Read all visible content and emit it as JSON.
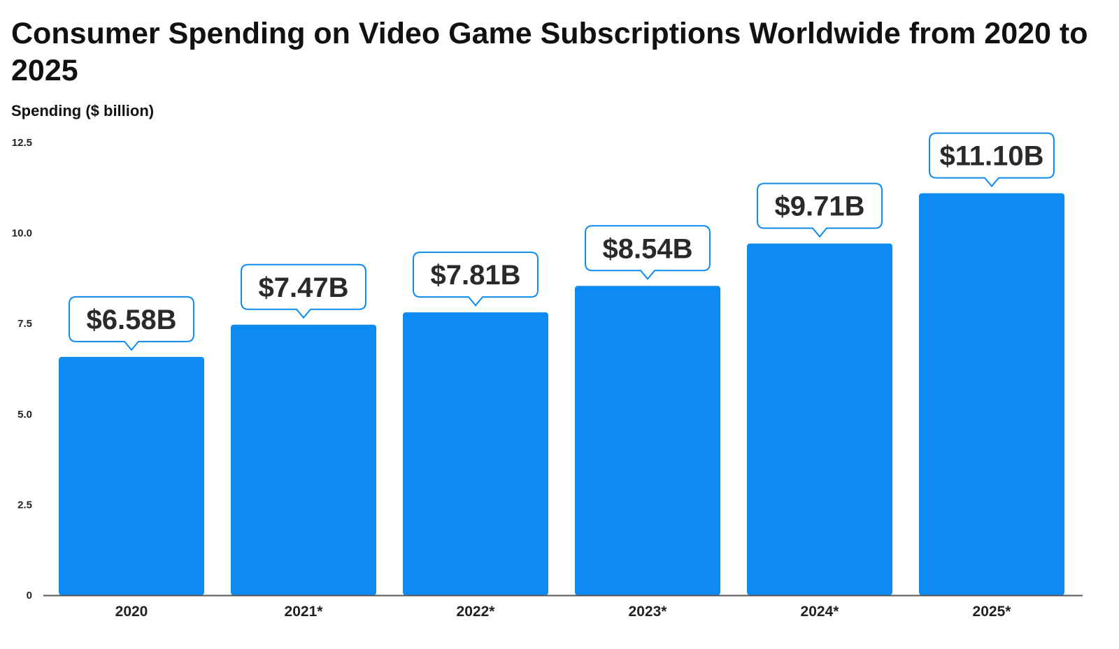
{
  "header": {
    "title": "Consumer Spending on Video Game Subscriptions Worldwide from 2020 to 2025",
    "ylabel": "Spending ($ billion)"
  },
  "colors": {
    "bar": "#0d8bf2",
    "label_border": "#0d8bf2",
    "axis": "#555555"
  },
  "chart_data": {
    "type": "bar",
    "title": "Consumer Spending on Video Game Subscriptions Worldwide from 2020 to 2025",
    "xlabel": "",
    "ylabel": "Spending ($ billion)",
    "ylim": [
      0,
      12.5
    ],
    "yticks": [
      0,
      2.5,
      5.0,
      7.5,
      10.0,
      12.5
    ],
    "ytick_labels": [
      "0",
      "2.5",
      "5.0",
      "7.5",
      "10.0",
      "12.5"
    ],
    "grid": false,
    "categories": [
      "2020",
      "2021*",
      "2022*",
      "2023*",
      "2024*",
      "2025*"
    ],
    "values": [
      6.58,
      7.47,
      7.81,
      8.54,
      9.71,
      11.1
    ],
    "data_labels": [
      "$6.58B",
      "$7.47B",
      "$7.81B",
      "$8.54B",
      "$9.71B",
      "$11.10B"
    ]
  }
}
